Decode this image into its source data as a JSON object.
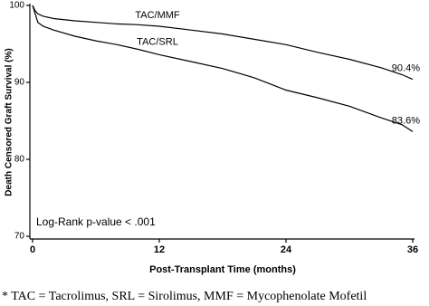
{
  "chart_data": {
    "type": "line",
    "x_label": "Post-Transplant Time (months)",
    "y_label": "Death Censored Graft Survival (%)",
    "x": [
      0,
      0.25,
      0.5,
      1,
      2,
      4,
      6,
      8,
      10,
      12,
      15,
      18,
      21,
      24,
      27,
      30,
      33,
      35,
      36
    ],
    "series": [
      {
        "name": "TAC/MMF",
        "color": "#000000",
        "values": [
          100,
          99.3,
          98.9,
          98.6,
          98.3,
          98.0,
          97.8,
          97.6,
          97.5,
          97.3,
          96.8,
          96.3,
          95.6,
          94.9,
          93.9,
          93.0,
          91.9,
          91.0,
          90.4
        ]
      },
      {
        "name": "TAC/SRL",
        "color": "#000000",
        "values": [
          100,
          98.9,
          97.8,
          97.3,
          96.8,
          96.0,
          95.4,
          94.9,
          94.3,
          93.6,
          92.7,
          91.8,
          90.6,
          89.0,
          88.0,
          86.9,
          85.4,
          84.5,
          83.6
        ]
      }
    ],
    "end_labels": [
      "90.4%",
      "83.6%"
    ],
    "annotation": "Log-Rank p-value < .001",
    "xlim": [
      0,
      36
    ],
    "xticks": [
      0,
      12,
      24,
      36
    ],
    "ylim": [
      70,
      100
    ],
    "yticks": [
      70,
      80,
      90,
      100
    ],
    "grid": false,
    "footnote": "* TAC = Tacrolimus, SRL = Sirolimus, MMF = Mycophenolate Mofetil"
  }
}
